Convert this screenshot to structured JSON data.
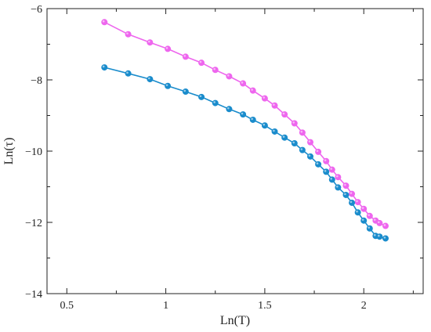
{
  "chart_data": {
    "type": "scatter",
    "title": "",
    "xlabel": "Ln(T)",
    "ylabel": "Ln(τ)",
    "xlim": [
      0.4,
      2.3
    ],
    "ylim": [
      -14,
      -6
    ],
    "xticks": [
      0.5,
      1,
      1.5,
      2
    ],
    "xtick_labels": [
      "0.5",
      "1",
      "1.5",
      "2"
    ],
    "yticks": [
      -14,
      -12,
      -10,
      -8,
      -6
    ],
    "ytick_labels": [
      "−14",
      "−12",
      "−10",
      "−8",
      "−6"
    ],
    "grid": false,
    "legend": "none",
    "series": [
      {
        "color": "#ee66ee",
        "marker": "circle",
        "x": [
          0.69,
          0.81,
          0.92,
          1.01,
          1.1,
          1.18,
          1.25,
          1.32,
          1.39,
          1.44,
          1.5,
          1.55,
          1.6,
          1.65,
          1.69,
          1.73,
          1.77,
          1.81,
          1.84,
          1.87,
          1.91,
          1.94,
          1.97,
          2.0,
          2.03,
          2.06,
          2.08,
          2.11
        ],
        "y": [
          -6.38,
          -6.72,
          -6.95,
          -7.13,
          -7.35,
          -7.52,
          -7.72,
          -7.9,
          -8.1,
          -8.3,
          -8.52,
          -8.72,
          -8.97,
          -9.22,
          -9.48,
          -9.75,
          -10.02,
          -10.28,
          -10.52,
          -10.73,
          -10.97,
          -11.2,
          -11.43,
          -11.62,
          -11.82,
          -11.95,
          -12.02,
          -12.1
        ],
        "fit_line": true
      },
      {
        "color": "#1a8ccc",
        "marker": "circle",
        "x": [
          0.69,
          0.81,
          0.92,
          1.01,
          1.1,
          1.18,
          1.25,
          1.32,
          1.39,
          1.44,
          1.5,
          1.55,
          1.6,
          1.65,
          1.69,
          1.73,
          1.77,
          1.81,
          1.84,
          1.87,
          1.91,
          1.94,
          1.97,
          2.0,
          2.03,
          2.06,
          2.08,
          2.11
        ],
        "y": [
          -7.65,
          -7.82,
          -7.98,
          -8.17,
          -8.33,
          -8.48,
          -8.65,
          -8.82,
          -8.97,
          -9.12,
          -9.28,
          -9.45,
          -9.62,
          -9.78,
          -9.97,
          -10.15,
          -10.37,
          -10.58,
          -10.8,
          -11.02,
          -11.23,
          -11.45,
          -11.72,
          -11.95,
          -12.17,
          -12.38,
          -12.4,
          -12.45
        ],
        "fit_line": true
      }
    ]
  }
}
